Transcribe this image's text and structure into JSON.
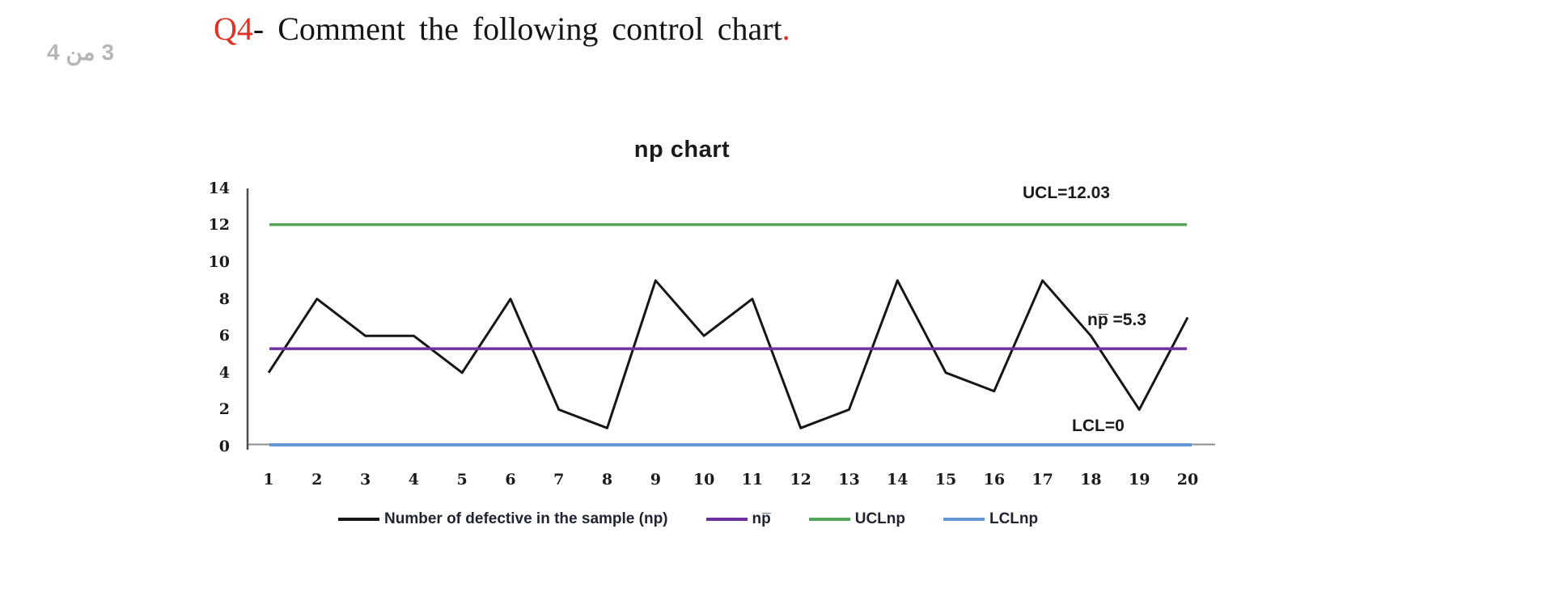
{
  "page": {
    "page_indicator": "3 من 4",
    "question": {
      "label": "Q4",
      "text": "- Comment the following control chart",
      "period": "."
    }
  },
  "chart_data": {
    "type": "line",
    "title": "np chart",
    "x": [
      1,
      2,
      3,
      4,
      5,
      6,
      7,
      8,
      9,
      10,
      11,
      12,
      13,
      14,
      15,
      16,
      17,
      18,
      19,
      20
    ],
    "series": [
      {
        "name": "Number of defective in the sample (np)",
        "kind": "data",
        "color": "#161616",
        "values": [
          4,
          8,
          6,
          6,
          4,
          8,
          2,
          1,
          9,
          6,
          8,
          1,
          2,
          9,
          4,
          3,
          9,
          6,
          2,
          7
        ]
      },
      {
        "name": "np̅",
        "kind": "hline",
        "color": "#7030a0",
        "value": 5.3
      },
      {
        "name": "UCLnp",
        "kind": "hline",
        "color": "#55a45c",
        "value": 12.03
      },
      {
        "name": "LCLnp",
        "kind": "hline",
        "color": "#6699d2",
        "value": 0
      }
    ],
    "ylim": [
      0,
      14
    ],
    "yticks": [
      14,
      12,
      10,
      8,
      6,
      4,
      2,
      0
    ],
    "grid": "off",
    "legend_position": "bottom",
    "annotations": {
      "ucl": "UCL=12.03",
      "center": "np̅ =5.3",
      "lcl": "LCL=0"
    },
    "legend": [
      "Number of defective in the sample (np)",
      "np̅",
      "UCLnp",
      "LCLnp"
    ],
    "axis_color": "#8c8c8c",
    "y_axis_color": "#4d4d4d"
  }
}
